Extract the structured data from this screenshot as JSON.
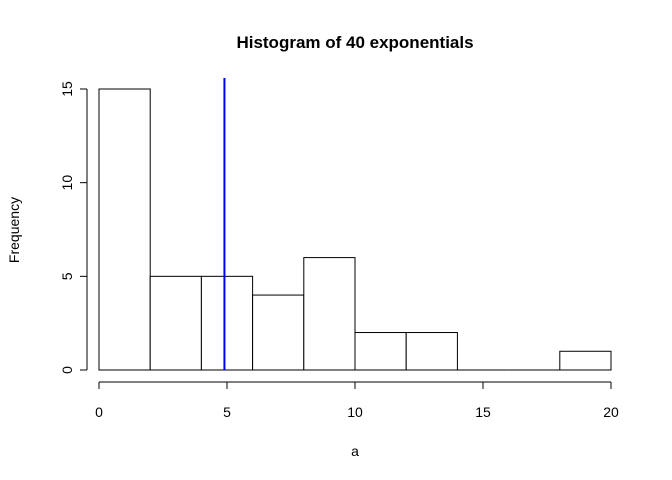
{
  "chart_data": {
    "type": "bar",
    "title": "Histogram of 40 exponentials",
    "xlabel": "a",
    "ylabel": "Frequency",
    "bin_edges": [
      0,
      2,
      4,
      6,
      8,
      10,
      12,
      14,
      16,
      18,
      20
    ],
    "values": [
      15,
      5,
      5,
      4,
      6,
      2,
      2,
      0,
      0,
      1
    ],
    "xlim": [
      0,
      20
    ],
    "ylim": [
      0,
      15
    ],
    "x_ticks": [
      "0",
      "5",
      "10",
      "15",
      "20"
    ],
    "y_ticks": [
      "0",
      "5",
      "10",
      "15"
    ],
    "grid": false,
    "reference_line": {
      "x": 4.9,
      "color": "#0000ff"
    }
  }
}
